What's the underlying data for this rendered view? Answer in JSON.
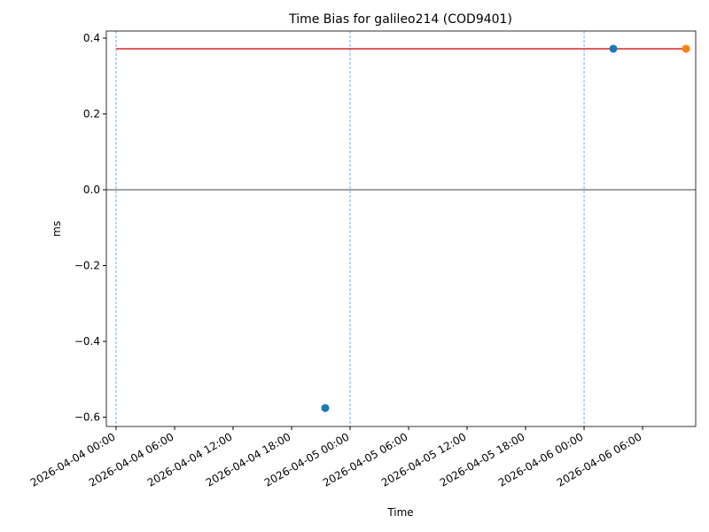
{
  "chart_data": {
    "type": "scatter",
    "title": "Time Bias for galileo214 (COD9401)",
    "x_label": "Time",
    "y_label": "ms",
    "series": [
      {
        "kind": "line",
        "color": "#d62728",
        "x": [
          "2026-04-04 00:00",
          "2026-04-06 10:27"
        ],
        "values": [
          0.372,
          0.372
        ]
      },
      {
        "kind": "scatter",
        "color": "#1f77b4",
        "x": [
          "2026-04-04 21:27",
          "2026-04-06 03:00"
        ],
        "values": [
          -0.576,
          0.372
        ]
      },
      {
        "kind": "scatter",
        "color": "#ff7f0e",
        "x": [
          "2026-04-06 10:27"
        ],
        "values": [
          0.372
        ]
      }
    ],
    "hline": 0,
    "vlines": [
      "2026-04-04 00:00",
      "2026-04-05 00:00",
      "2026-04-06 00:00"
    ],
    "xlim": [
      "2026-04-03 23:00",
      "2026-04-06 11:27"
    ],
    "xticks": [
      "2026-04-04 00:00",
      "2026-04-04 06:00",
      "2026-04-04 12:00",
      "2026-04-04 18:00",
      "2026-04-05 00:00",
      "2026-04-05 06:00",
      "2026-04-05 12:00",
      "2026-04-05 18:00",
      "2026-04-06 00:00",
      "2026-04-06 06:00"
    ],
    "ylim": [
      -0.6246,
      0.4187
    ],
    "yticks": [
      {
        "value": 0.4,
        "label": "0.4"
      },
      {
        "value": 0.2,
        "label": "0.2"
      },
      {
        "value": 0,
        "label": "0.0"
      },
      {
        "value": -0.2,
        "label": "−0.2"
      },
      {
        "value": -0.4,
        "label": "−0.4"
      },
      {
        "value": -0.6,
        "label": "−0.6"
      }
    ]
  }
}
